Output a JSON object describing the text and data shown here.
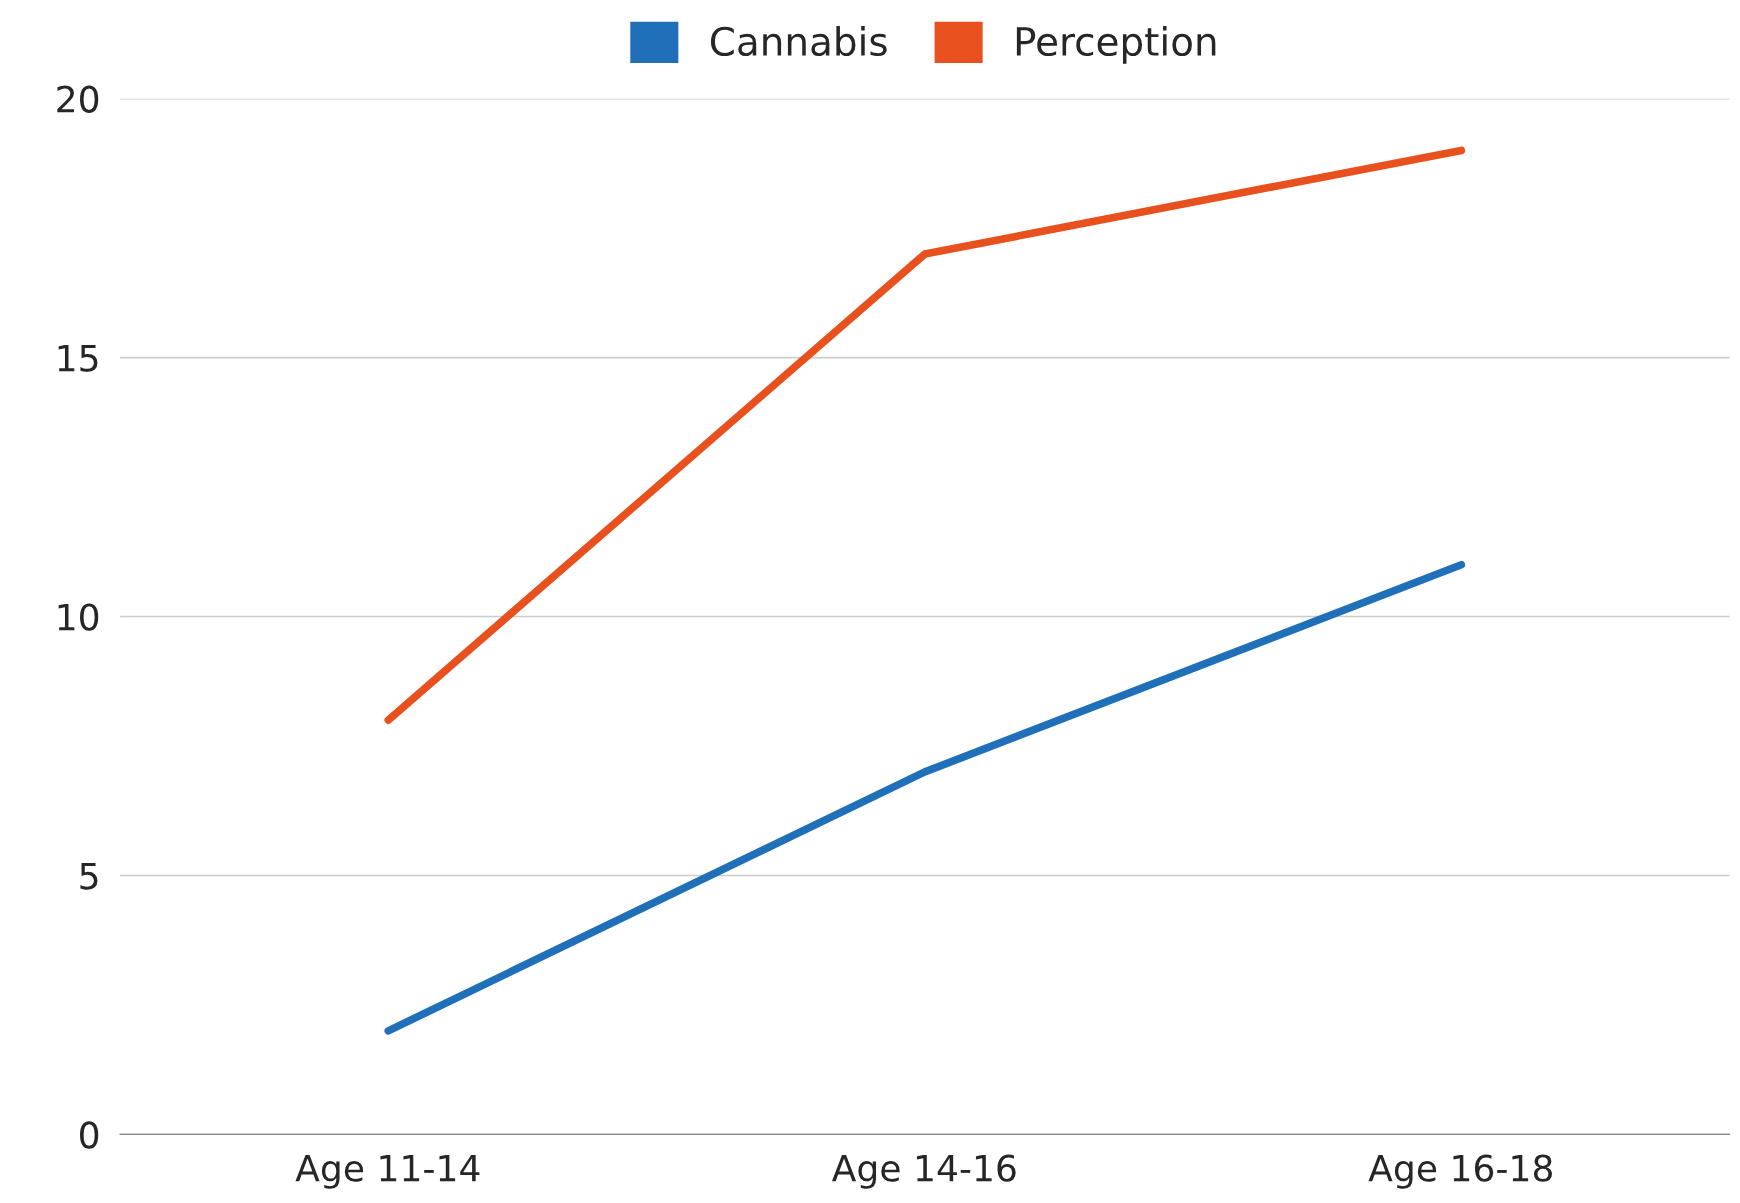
{
  "chart_data": {
    "type": "line",
    "categories": [
      "Age 11-14",
      "Age 14-16",
      "Age 16-18"
    ],
    "series": [
      {
        "name": "Cannabis",
        "color": "#1f70b8",
        "values": [
          2,
          7,
          11
        ]
      },
      {
        "name": "Perception",
        "color": "#e8501e",
        "values": [
          8,
          17,
          19
        ]
      }
    ],
    "ylim": [
      0,
      20
    ],
    "yticks": [
      0,
      5,
      10,
      15,
      20
    ],
    "grid": "y",
    "legend": "top",
    "marker": "none",
    "line_style": "solid"
  }
}
